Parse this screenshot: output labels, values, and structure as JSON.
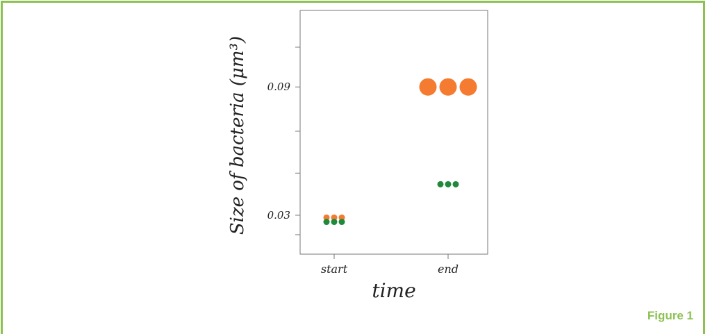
{
  "figure_label": "Figure 1",
  "colors": {
    "frame": "#8cc152",
    "orange_series": "#f47b2f",
    "green_series": "#1f8a3c"
  },
  "chart_data": {
    "type": "scatter",
    "xlabel": "time",
    "ylabel": "Size of bacteria (μm³)",
    "categories": [
      "start",
      "end"
    ],
    "y_tick_labels": [
      "0.03",
      "0.09"
    ],
    "y_ticks_labeled": [
      0.03,
      0.09
    ],
    "y_ticks_all": [
      0.0209,
      0.03,
      0.0497,
      0.0693,
      0.09,
      0.1086
    ],
    "ylim": [
      0.0118,
      0.1258
    ],
    "grid": false,
    "legend": "none",
    "series": [
      {
        "color": "orange",
        "marker": "small-at-start-large-at-end",
        "points": [
          {
            "x": "start",
            "y": 0.0289,
            "count": 3,
            "size": "small"
          },
          {
            "x": "end",
            "y": 0.09,
            "count": 3,
            "size": "large"
          }
        ]
      },
      {
        "color": "green",
        "marker": "small",
        "points": [
          {
            "x": "start",
            "y": 0.0269,
            "count": 3,
            "size": "small"
          },
          {
            "x": "end",
            "y": 0.0445,
            "count": 3,
            "size": "small"
          }
        ]
      }
    ]
  }
}
